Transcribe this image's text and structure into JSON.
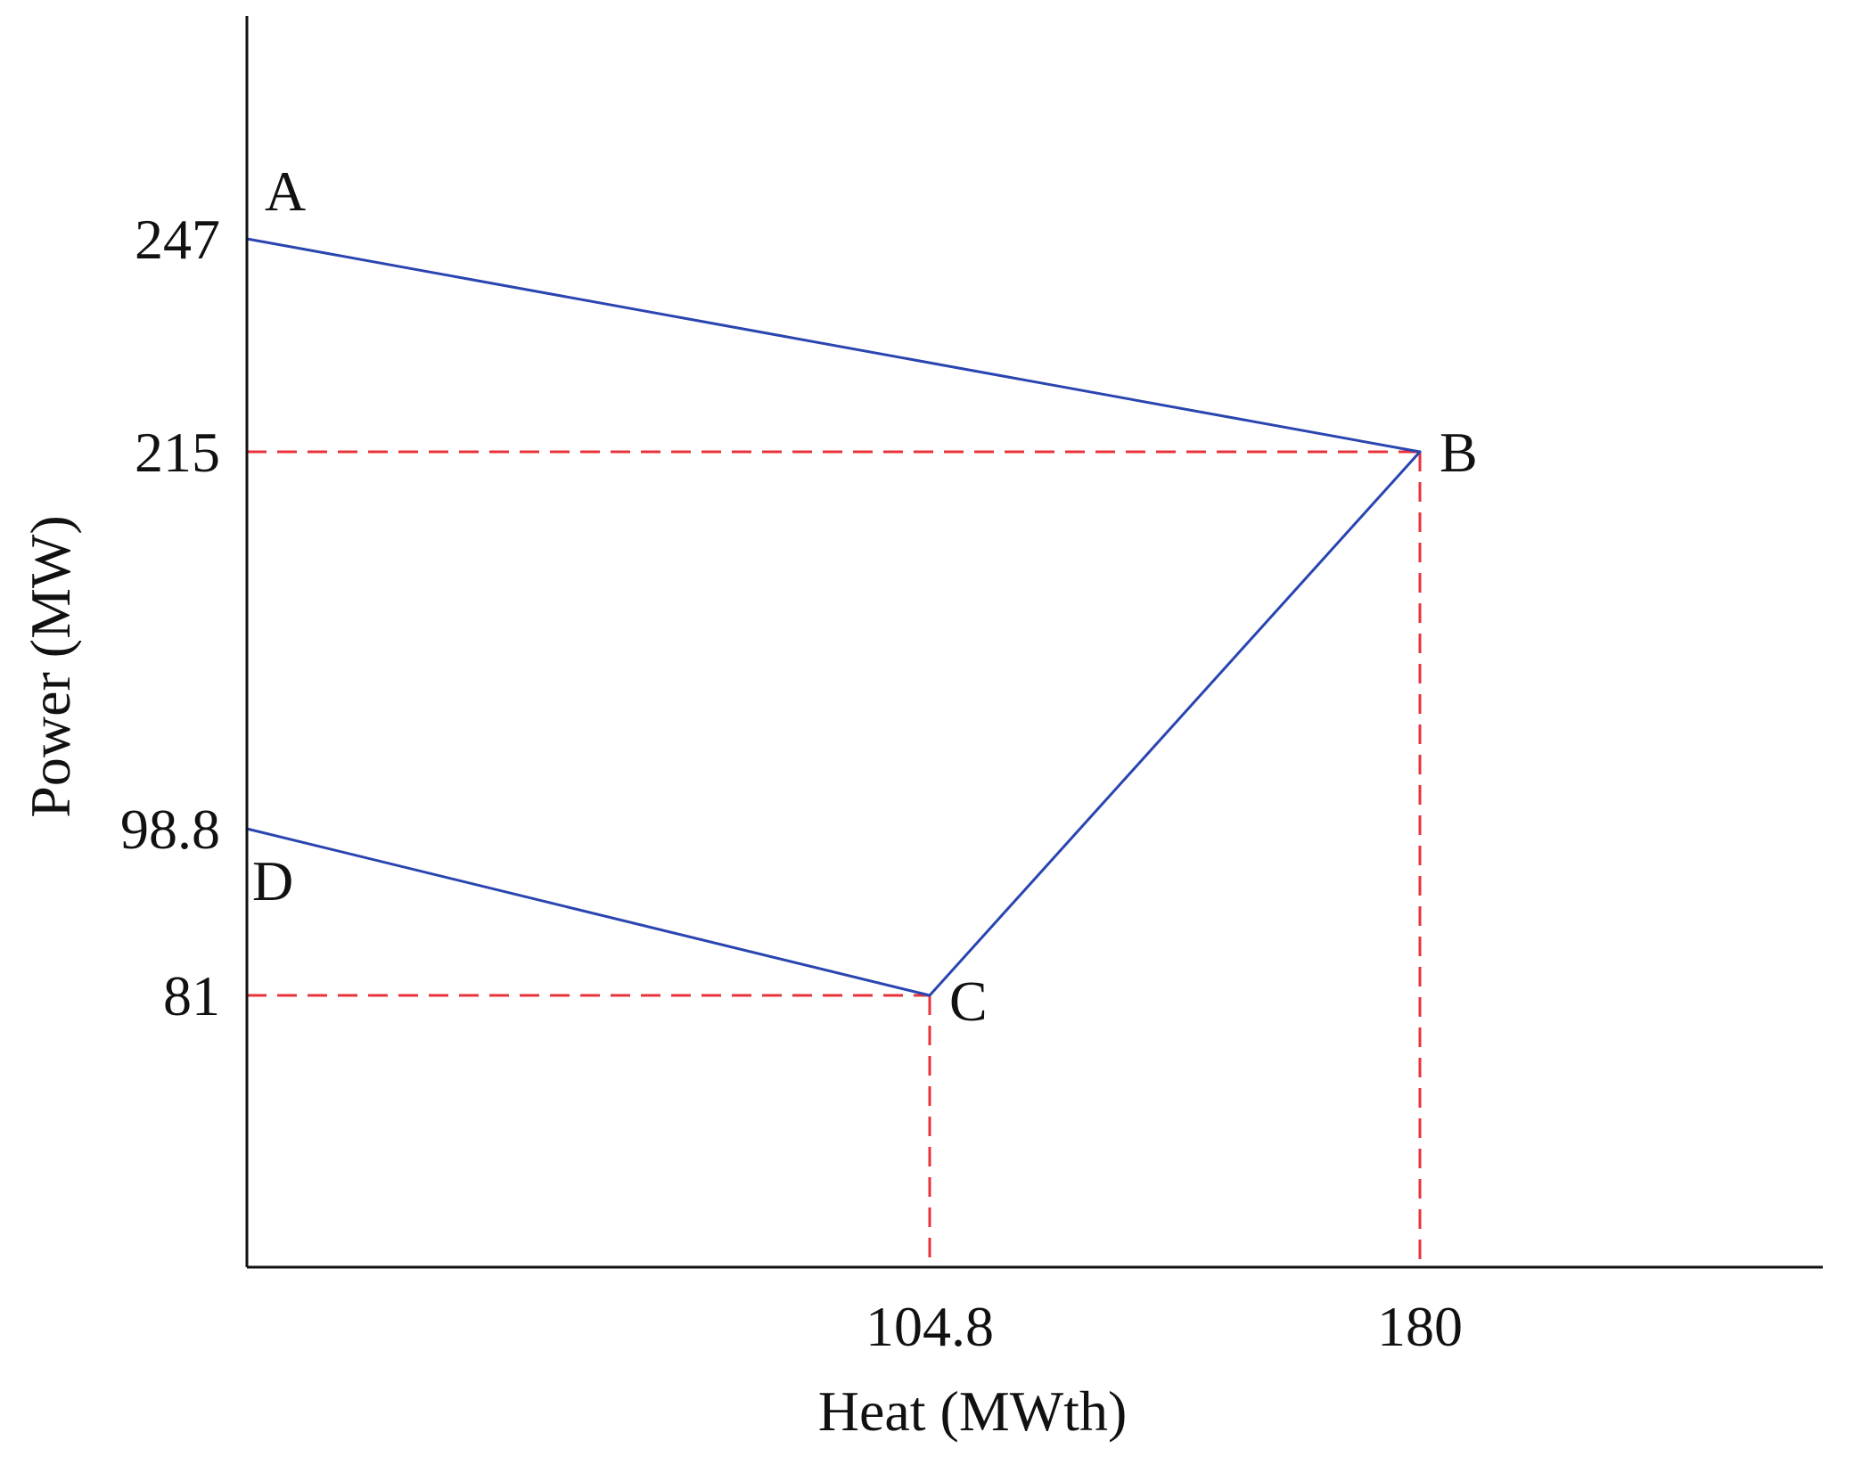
{
  "chart_data": {
    "type": "line",
    "xlabel": "Heat (MWth)",
    "ylabel": "Power (MW)",
    "xlim": [
      0,
      250
    ],
    "ylim": [
      0,
      280
    ],
    "grid": false,
    "points": [
      {
        "label": "A",
        "x": 0,
        "y": 247
      },
      {
        "label": "B",
        "x": 180,
        "y": 215
      },
      {
        "label": "C",
        "x": 104.8,
        "y": 81
      },
      {
        "label": "D",
        "x": 0,
        "y": 98.8
      }
    ],
    "boundary": [
      "A",
      "B",
      "C",
      "D"
    ],
    "x_ticks": [
      {
        "value": 104.8,
        "label": "104.8"
      },
      {
        "value": 180,
        "label": "180"
      }
    ],
    "y_ticks": [
      {
        "value": 247,
        "label": "247"
      },
      {
        "value": 215,
        "label": "215"
      },
      {
        "value": 98.8,
        "label": "98.8"
      },
      {
        "value": 81,
        "label": "81"
      }
    ],
    "reference_lines": [
      "B",
      "C"
    ],
    "colors": {
      "boundary": "#2a45b0",
      "reference": "#e8333b",
      "axis": "#111111"
    }
  }
}
